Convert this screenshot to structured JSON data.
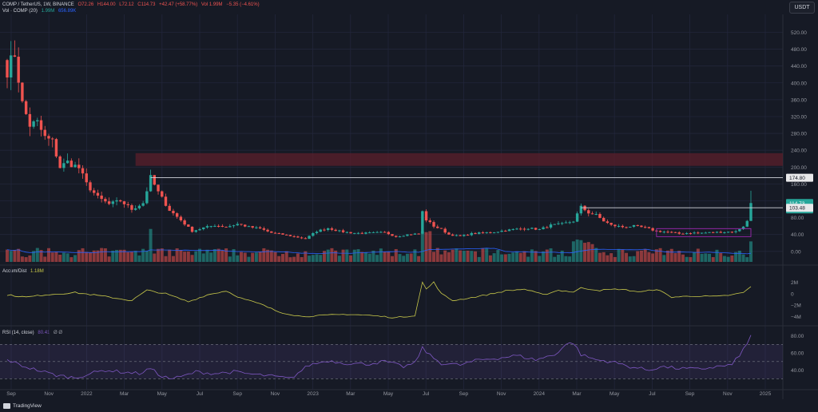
{
  "header": {
    "symbol": "COMP / TetherUS, 1W, BINANCE",
    "open": "O72.26",
    "high": "H144.00",
    "low": "L72.12",
    "close": "C114.73",
    "change": "+42.47 (+58.77%)",
    "vol_label": "Vol 1.99M",
    "change2": "−5.35 (−4.61%)",
    "vol_title": "Vol · COMP (20)",
    "vol_value": "1.99M",
    "vol_ma": "656.89K"
  },
  "currency_button": "USDT",
  "accum_title": "Accum/Dist",
  "accum_value": "1.18M",
  "rsi_title": "RSI (14, close)",
  "rsi_value": "80.41",
  "rsi_extra": "Ø Ø",
  "brand": "TradingView",
  "colors": {
    "bg": "#161a25",
    "up": "#26a69a",
    "down": "#ef5350",
    "zone": "#5b1f2b",
    "ad": "#c9c94a",
    "rsi": "#7e57c2",
    "vol_ma": "#2962ff",
    "box": "#9c27b0"
  },
  "price_tags": [
    {
      "value": 174.8,
      "text": "174.80",
      "style": "light"
    },
    {
      "value": 114.73,
      "text": "114.73",
      "sub": "3d 17h",
      "style": "green"
    },
    {
      "value": 103.48,
      "text": "103.48",
      "style": "light"
    }
  ],
  "chart_data": [
    {
      "type": "candlestick",
      "title": "COMP / TetherUS, 1W, BINANCE",
      "y_ticks": [
        0,
        40,
        80,
        120,
        160,
        200,
        240,
        280,
        320,
        360,
        400,
        440,
        480,
        520
      ],
      "y_tick_labels": [
        "0.00",
        "40.00",
        "80.00",
        "120.00",
        "160.00",
        "200.00",
        "240.00",
        "280.00",
        "320.00",
        "360.00",
        "400.00",
        "440.00",
        "480.00",
        "520.00"
      ],
      "ylim": [
        -25,
        555
      ],
      "x_labels": [
        "Sep",
        "Nov",
        "2022",
        "Mar",
        "May",
        "Jul",
        "Sep",
        "Nov",
        "2023",
        "Mar",
        "May",
        "Jul",
        "Sep",
        "Nov",
        "2024",
        "Mar",
        "May",
        "Jul",
        "Sep",
        "Nov",
        "2025"
      ],
      "resistance_zone": [
        203,
        233
      ],
      "levels": [
        {
          "value": 174.8,
          "start_week": 38
        },
        {
          "value": 103.48,
          "start_week": 152
        }
      ],
      "range_box": {
        "weeks": [
          172,
          197
        ],
        "top": 54,
        "bottom": 35
      },
      "weekly_close_anchors": [
        [
          0,
          430
        ],
        [
          2,
          470
        ],
        [
          4,
          350
        ],
        [
          6,
          300
        ],
        [
          8,
          305
        ],
        [
          10,
          270
        ],
        [
          12,
          260
        ],
        [
          14,
          200
        ],
        [
          16,
          212
        ],
        [
          19,
          198
        ],
        [
          21,
          160
        ],
        [
          24,
          128
        ],
        [
          27,
          112
        ],
        [
          30,
          120
        ],
        [
          33,
          100
        ],
        [
          36,
          115
        ],
        [
          38,
          175
        ],
        [
          40,
          140
        ],
        [
          43,
          98
        ],
        [
          46,
          74
        ],
        [
          49,
          48
        ],
        [
          52,
          56
        ],
        [
          55,
          62
        ],
        [
          58,
          58
        ],
        [
          61,
          65
        ],
        [
          64,
          58
        ],
        [
          67,
          54
        ],
        [
          70,
          44
        ],
        [
          73,
          40
        ],
        [
          76,
          35
        ],
        [
          79,
          30
        ],
        [
          82,
          48
        ],
        [
          85,
          55
        ],
        [
          88,
          48
        ],
        [
          91,
          44
        ],
        [
          94,
          43
        ],
        [
          97,
          44
        ],
        [
          100,
          45
        ],
        [
          103,
          35
        ],
        [
          106,
          40
        ],
        [
          109,
          42
        ],
        [
          110,
          94
        ],
        [
          111,
          75
        ],
        [
          113,
          60
        ],
        [
          115,
          52
        ],
        [
          117,
          40
        ],
        [
          120,
          36
        ],
        [
          123,
          42
        ],
        [
          126,
          44
        ],
        [
          129,
          46
        ],
        [
          132,
          50
        ],
        [
          135,
          53
        ],
        [
          138,
          55
        ],
        [
          141,
          52
        ],
        [
          144,
          62
        ],
        [
          147,
          65
        ],
        [
          150,
          72
        ],
        [
          152,
          105
        ],
        [
          154,
          92
        ],
        [
          156,
          86
        ],
        [
          158,
          72
        ],
        [
          160,
          62
        ],
        [
          163,
          58
        ],
        [
          166,
          60
        ],
        [
          169,
          56
        ],
        [
          172,
          48
        ],
        [
          175,
          46
        ],
        [
          178,
          42
        ],
        [
          181,
          44
        ],
        [
          184,
          44
        ],
        [
          187,
          45
        ],
        [
          190,
          46
        ],
        [
          193,
          47
        ],
        [
          195,
          60
        ],
        [
          196,
          72.26
        ],
        [
          197,
          114.73
        ]
      ]
    },
    {
      "type": "bar",
      "title": "Vol · COMP (20)",
      "note": "weekly volume with 20-period moving average"
    },
    {
      "type": "line",
      "title": "Accum/Dist",
      "y_tick_labels": [
        "2M",
        "0",
        "−2M",
        "−4M"
      ],
      "ylim": [
        -5.2,
        3.2
      ],
      "anchors": [
        [
          0,
          -0.2
        ],
        [
          5,
          -0.6
        ],
        [
          10,
          -0.2
        ],
        [
          18,
          0.2
        ],
        [
          25,
          -0.4
        ],
        [
          33,
          -1.2
        ],
        [
          37,
          0.6
        ],
        [
          42,
          0.0
        ],
        [
          48,
          -1.4
        ],
        [
          53,
          -0.2
        ],
        [
          58,
          0.5
        ],
        [
          62,
          -0.8
        ],
        [
          67,
          -1.8
        ],
        [
          72,
          -3.2
        ],
        [
          78,
          -4.0
        ],
        [
          84,
          -3.8
        ],
        [
          90,
          -3.6
        ],
        [
          96,
          -3.8
        ],
        [
          103,
          -4.2
        ],
        [
          108,
          -3.8
        ],
        [
          110,
          2.0
        ],
        [
          111,
          0.8
        ],
        [
          113,
          2.0
        ],
        [
          115,
          0.0
        ],
        [
          118,
          -1.2
        ],
        [
          122,
          -0.8
        ],
        [
          127,
          -0.2
        ],
        [
          132,
          0.5
        ],
        [
          137,
          0.8
        ],
        [
          142,
          -0.2
        ],
        [
          146,
          0.6
        ],
        [
          150,
          0.3
        ],
        [
          152,
          1.0
        ],
        [
          157,
          0.6
        ],
        [
          162,
          0.8
        ],
        [
          168,
          0.3
        ],
        [
          172,
          0.8
        ],
        [
          176,
          -0.6
        ],
        [
          182,
          -0.4
        ],
        [
          188,
          -0.5
        ],
        [
          192,
          -0.2
        ],
        [
          195,
          0.2
        ],
        [
          197,
          1.2
        ]
      ]
    },
    {
      "type": "line",
      "title": "RSI (14, close)",
      "y_tick_labels": [
        "80.00",
        "60.00",
        "40.00"
      ],
      "ylim": [
        20,
        88
      ],
      "bands": [
        30,
        70
      ],
      "anchors": [
        [
          0,
          52
        ],
        [
          4,
          45
        ],
        [
          8,
          40
        ],
        [
          13,
          34
        ],
        [
          18,
          31
        ],
        [
          22,
          36
        ],
        [
          26,
          40
        ],
        [
          30,
          38
        ],
        [
          35,
          36
        ],
        [
          38,
          42
        ],
        [
          40,
          35
        ],
        [
          43,
          30
        ],
        [
          46,
          32
        ],
        [
          50,
          38
        ],
        [
          55,
          36
        ],
        [
          60,
          38
        ],
        [
          65,
          35
        ],
        [
          70,
          33
        ],
        [
          75,
          30
        ],
        [
          80,
          46
        ],
        [
          85,
          51
        ],
        [
          90,
          48
        ],
        [
          95,
          47
        ],
        [
          100,
          50
        ],
        [
          105,
          44
        ],
        [
          108,
          48
        ],
        [
          110,
          66
        ],
        [
          112,
          57
        ],
        [
          115,
          48
        ],
        [
          120,
          46
        ],
        [
          125,
          52
        ],
        [
          130,
          54
        ],
        [
          135,
          57
        ],
        [
          140,
          52
        ],
        [
          145,
          58
        ],
        [
          148,
          70
        ],
        [
          150,
          72
        ],
        [
          152,
          58
        ],
        [
          156,
          52
        ],
        [
          160,
          50
        ],
        [
          165,
          44
        ],
        [
          170,
          40
        ],
        [
          173,
          44
        ],
        [
          178,
          42
        ],
        [
          183,
          41
        ],
        [
          188,
          44
        ],
        [
          192,
          46
        ],
        [
          195,
          64
        ],
        [
          196,
          70
        ],
        [
          197,
          80.41
        ]
      ]
    }
  ]
}
